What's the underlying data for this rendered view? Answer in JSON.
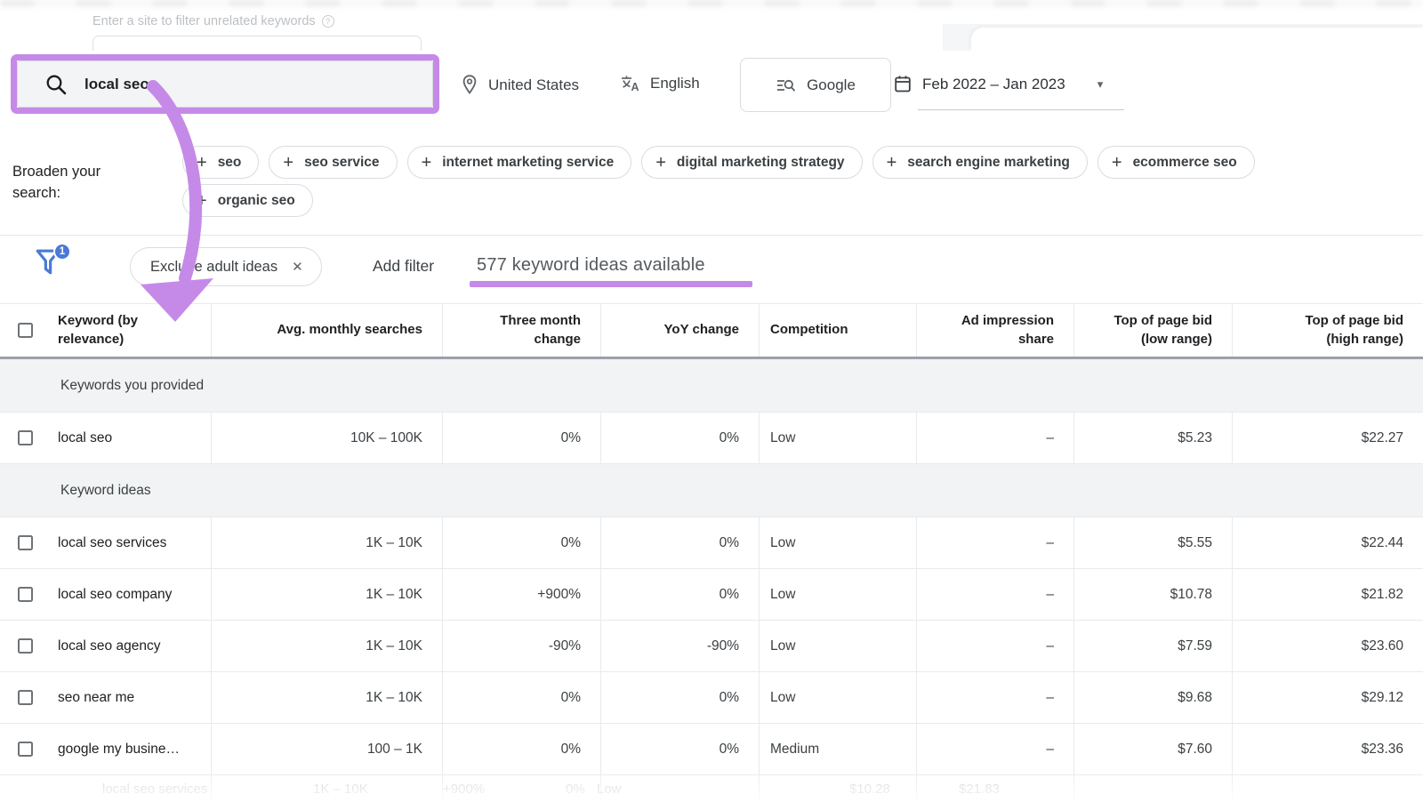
{
  "colors": {
    "purple": "#c58ae8",
    "blue": "#4a7ad4"
  },
  "top_bar": {
    "site_filter_label": "Enter a site to filter unrelated keywords",
    "help_glyph": "?"
  },
  "search": {
    "query": "local seo",
    "location": "United States",
    "language": "English",
    "network": "Google",
    "date_range": "Feb 2022 – Jan 2023",
    "caret_glyph": "▾"
  },
  "broaden": {
    "label": "Broaden your search:",
    "plus_glyph": "+",
    "chips_row1": [
      "seo",
      "seo service",
      "internet marketing service",
      "digital marketing strategy",
      "search engine marketing",
      "ecommerce seo"
    ],
    "chips_row2": [
      "organic seo"
    ]
  },
  "filter_bar": {
    "badge_count": "1",
    "active_filter_chip": "Exclude adult ideas",
    "close_glyph": "✕",
    "add_filter_label": "Add filter",
    "results_text": "577 keyword ideas available"
  },
  "table": {
    "headers": [
      "Keyword (by relevance)",
      "Avg. monthly searches",
      "Three month change",
      "YoY change",
      "Competition",
      "Ad impression share",
      "Top of page bid (low range)",
      "Top of page bid (high range)"
    ],
    "sections": [
      {
        "label": "Keywords you provided",
        "rows": [
          {
            "keyword": "local seo",
            "avg_monthly_searches": "10K – 100K",
            "three_month_change": "0%",
            "yoy_change": "0%",
            "competition": "Low",
            "ad_impression_share": "–",
            "top_bid_low": "$5.23",
            "top_bid_high": "$22.27"
          }
        ]
      },
      {
        "label": "Keyword ideas",
        "rows": [
          {
            "keyword": "local seo services",
            "avg_monthly_searches": "1K – 10K",
            "three_month_change": "0%",
            "yoy_change": "0%",
            "competition": "Low",
            "ad_impression_share": "–",
            "top_bid_low": "$5.55",
            "top_bid_high": "$22.44"
          },
          {
            "keyword": "local seo company",
            "avg_monthly_searches": "1K – 10K",
            "three_month_change": "+900%",
            "yoy_change": "0%",
            "competition": "Low",
            "ad_impression_share": "–",
            "top_bid_low": "$10.78",
            "top_bid_high": "$21.82"
          },
          {
            "keyword": "local seo agency",
            "avg_monthly_searches": "1K – 10K",
            "three_month_change": "-90%",
            "yoy_change": "-90%",
            "competition": "Low",
            "ad_impression_share": "–",
            "top_bid_low": "$7.59",
            "top_bid_high": "$23.60"
          },
          {
            "keyword": "seo near me",
            "avg_monthly_searches": "1K – 10K",
            "three_month_change": "0%",
            "yoy_change": "0%",
            "competition": "Low",
            "ad_impression_share": "–",
            "top_bid_low": "$9.68",
            "top_bid_high": "$29.12"
          },
          {
            "keyword": "google my busine…",
            "avg_monthly_searches": "100 – 1K",
            "three_month_change": "0%",
            "yoy_change": "0%",
            "competition": "Medium",
            "ad_impression_share": "–",
            "top_bid_low": "$7.60",
            "top_bid_high": "$23.36"
          }
        ]
      }
    ],
    "partial_row": {
      "keyword": "local seo services",
      "avg_monthly_searches": "1K – 10K",
      "three_month_change": "+900%",
      "yoy_change": "0%",
      "competition": "Low",
      "top_bid_low": "$10.28",
      "top_bid_high": "$21.83"
    }
  }
}
